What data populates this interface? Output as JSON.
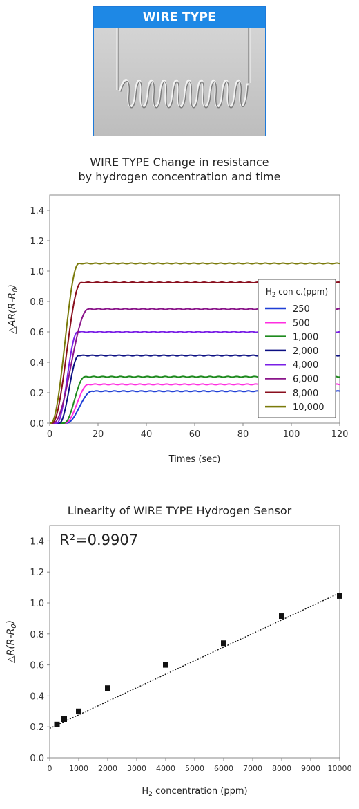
{
  "photo": {
    "header": "WIRE TYPE",
    "icon": "coiled-wire-sensor-photo"
  },
  "chart_data": [
    {
      "type": "line",
      "title_line1": "WIRE TYPE Change in resistance",
      "title_line2": "by hydrogen concentration and time",
      "xlabel": "Times (sec)",
      "ylabel": "△AR(R-R0)",
      "xlim": [
        0,
        120
      ],
      "ylim": [
        0,
        1.5
      ],
      "xticks": [
        0,
        20,
        40,
        60,
        80,
        100,
        120
      ],
      "yticks": [
        0.0,
        0.2,
        0.4,
        0.6,
        0.8,
        1.0,
        1.2,
        1.4
      ],
      "grid": false,
      "legend_title": "H2 con c.(ppm)",
      "legend_position": "right",
      "series": [
        {
          "name": "250",
          "color": "#1f3fd6",
          "onset": 7.0,
          "rise": 17.5,
          "plateau": 0.21
        },
        {
          "name": "500",
          "color": "#ff2ee0",
          "onset": 6.5,
          "rise": 16.0,
          "plateau": 0.255
        },
        {
          "name": "1,000",
          "color": "#1e8a1e",
          "onset": 6.0,
          "rise": 14.5,
          "plateau": 0.305
        },
        {
          "name": "2,000",
          "color": "#0b0f82",
          "onset": 4.0,
          "rise": 12.0,
          "plateau": 0.445
        },
        {
          "name": "4,000",
          "color": "#7a1fe6",
          "onset": 3.0,
          "rise": 11.5,
          "plateau": 0.6
        },
        {
          "name": "6,000",
          "color": "#8a158a",
          "onset": 1.5,
          "rise": 16.0,
          "plateau": 0.75
        },
        {
          "name": "8,000",
          "color": "#8a0f1e",
          "onset": 1.0,
          "rise": 13.0,
          "plateau": 0.925
        },
        {
          "name": "10,000",
          "color": "#7a7a0a",
          "onset": 0.5,
          "rise": 12.0,
          "plateau": 1.05
        }
      ]
    },
    {
      "type": "scatter",
      "title": "Linearity of WIRE TYPE Hydrogen Sensor",
      "xlabel": "H2 concentration (ppm)",
      "ylabel": "△R(R-R0)",
      "xlim": [
        0,
        10000
      ],
      "ylim": [
        0,
        1.5
      ],
      "xticks": [
        0,
        1000,
        2000,
        3000,
        4000,
        5000,
        6000,
        7000,
        8000,
        9000,
        10000
      ],
      "yticks": [
        0.0,
        0.2,
        0.4,
        0.6,
        0.8,
        1.0,
        1.2,
        1.4
      ],
      "annotation": "R²=0.9907",
      "points": [
        {
          "x": 250,
          "y": 0.215
        },
        {
          "x": 500,
          "y": 0.25
        },
        {
          "x": 1000,
          "y": 0.3
        },
        {
          "x": 2000,
          "y": 0.45
        },
        {
          "x": 4000,
          "y": 0.6
        },
        {
          "x": 6000,
          "y": 0.74
        },
        {
          "x": 8000,
          "y": 0.915
        },
        {
          "x": 10000,
          "y": 1.045
        }
      ],
      "trendline": {
        "style": "dotted",
        "from": [
          0,
          0.19
        ],
        "to": [
          10000,
          1.065
        ]
      },
      "grid": false
    }
  ]
}
